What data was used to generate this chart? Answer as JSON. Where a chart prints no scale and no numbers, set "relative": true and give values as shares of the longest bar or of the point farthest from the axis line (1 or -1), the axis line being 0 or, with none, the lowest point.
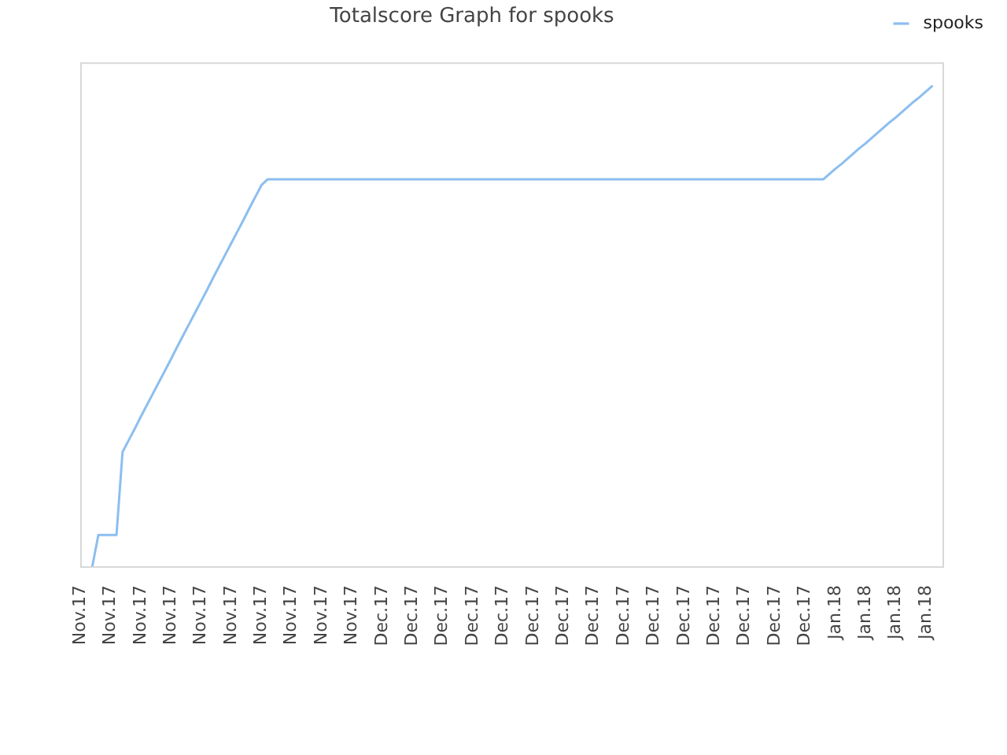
{
  "chart_data": {
    "type": "line",
    "title": "Totalscore Graph for spooks",
    "relative": true,
    "categories": [
      "Nov.17",
      null,
      null,
      null,
      null,
      "Nov.17",
      null,
      null,
      null,
      null,
      "Nov.17",
      null,
      null,
      null,
      null,
      "Nov.17",
      null,
      null,
      null,
      null,
      "Nov.17",
      null,
      null,
      null,
      null,
      "Nov.17",
      null,
      null,
      null,
      null,
      "Nov.17",
      null,
      null,
      null,
      null,
      "Nov.17",
      null,
      null,
      null,
      null,
      "Nov.17",
      null,
      null,
      null,
      null,
      "Nov.17",
      null,
      null,
      null,
      null,
      "Dec.17",
      null,
      null,
      null,
      null,
      "Dec.17",
      null,
      null,
      null,
      null,
      "Dec.17",
      null,
      null,
      null,
      null,
      "Dec.17",
      null,
      null,
      null,
      null,
      "Dec.17",
      null,
      null,
      null,
      null,
      "Dec.17",
      null,
      null,
      null,
      null,
      "Dec.17",
      null,
      null,
      null,
      null,
      "Dec.17",
      null,
      null,
      null,
      null,
      "Dec.17",
      null,
      null,
      null,
      null,
      "Dec.17",
      null,
      null,
      null,
      null,
      "Dec.17",
      null,
      null,
      null,
      null,
      "Dec.17",
      null,
      null,
      null,
      null,
      "Dec.17",
      null,
      null,
      null,
      null,
      "Dec.17",
      null,
      null,
      null,
      null,
      "Dec.17",
      null,
      null,
      null,
      null,
      "Jan.18",
      null,
      null,
      null,
      null,
      "Jan.18",
      null,
      null,
      null,
      null,
      "Jan.18",
      null,
      null,
      null,
      null,
      "Jan.18",
      null,
      null,
      null
    ],
    "series": [
      {
        "name": "spooks",
        "color": "#8cbef0",
        "values": [
          null,
          null,
          0,
          0.065,
          0.065,
          0.065,
          0.065,
          0.238,
          0.262,
          0.286,
          0.311,
          0.335,
          0.359,
          0.383,
          0.407,
          0.431,
          0.456,
          0.48,
          0.504,
          0.528,
          0.552,
          0.576,
          0.601,
          0.625,
          0.649,
          0.673,
          0.697,
          0.721,
          0.746,
          0.77,
          0.794,
          0.806,
          0.806,
          0.806,
          0.806,
          0.806,
          0.806,
          0.806,
          0.806,
          0.806,
          0.806,
          0.806,
          0.806,
          0.806,
          0.806,
          0.806,
          0.806,
          0.806,
          0.806,
          0.806,
          0.806,
          0.806,
          0.806,
          0.806,
          0.806,
          0.806,
          0.806,
          0.806,
          0.806,
          0.806,
          0.806,
          0.806,
          0.806,
          0.806,
          0.806,
          0.806,
          0.806,
          0.806,
          0.806,
          0.806,
          0.806,
          0.806,
          0.806,
          0.806,
          0.806,
          0.806,
          0.806,
          0.806,
          0.806,
          0.806,
          0.806,
          0.806,
          0.806,
          0.806,
          0.806,
          0.806,
          0.806,
          0.806,
          0.806,
          0.806,
          0.806,
          0.806,
          0.806,
          0.806,
          0.806,
          0.806,
          0.806,
          0.806,
          0.806,
          0.806,
          0.806,
          0.806,
          0.806,
          0.806,
          0.806,
          0.806,
          0.806,
          0.806,
          0.806,
          0.806,
          0.806,
          0.806,
          0.806,
          0.806,
          0.806,
          0.806,
          0.806,
          0.806,
          0.806,
          0.806,
          0.806,
          0.806,
          0.806,
          0.806,
          0.817,
          0.828,
          0.838,
          0.849,
          0.86,
          0.871,
          0.881,
          0.892,
          0.903,
          0.914,
          0.925,
          0.935,
          0.946,
          0.957,
          0.968,
          0.978,
          0.989,
          1,
          null,
          null
        ]
      }
    ],
    "legend": "top right",
    "marker": "none",
    "line_style": "solid"
  }
}
